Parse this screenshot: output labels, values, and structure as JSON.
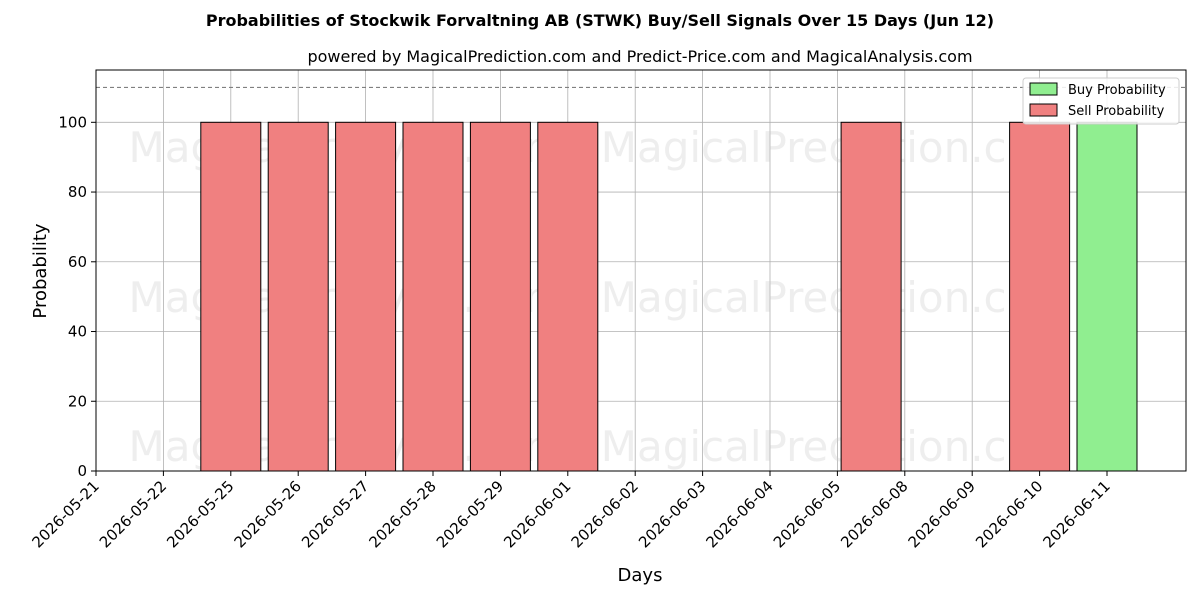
{
  "chart_data": {
    "type": "bar",
    "title": "Probabilities of Stockwik Forvaltning AB (STWK) Buy/Sell Signals Over 15 Days (Jun 12)",
    "subtitle": "powered by MagicalPrediction.com and Predict-Price.com and MagicalAnalysis.com",
    "xlabel": "Days",
    "ylabel": "Probability",
    "ylim": [
      0,
      115
    ],
    "yticks": [
      0,
      20,
      40,
      60,
      80,
      100
    ],
    "reference_line": 110,
    "grid": true,
    "legend_position": "top-right",
    "categories": [
      "2026-05-21",
      "2026-05-22",
      "2026-05-25",
      "2026-05-26",
      "2026-05-27",
      "2026-05-28",
      "2026-05-29",
      "2026-06-01",
      "2026-06-02",
      "2026-06-03",
      "2026-06-04",
      "2026-06-05",
      "2026-06-08",
      "2026-06-09",
      "2026-06-10",
      "2026-06-11"
    ],
    "series": [
      {
        "name": "Buy Probability",
        "color": "#90ee90",
        "bars": [
          {
            "category_index": 14.5,
            "value": 100
          }
        ]
      },
      {
        "name": "Sell Probability",
        "color": "#f08080",
        "bars": [
          {
            "category_index": 2.0,
            "value": 100
          },
          {
            "category_index": 3.0,
            "value": 100
          },
          {
            "category_index": 4.0,
            "value": 100
          },
          {
            "category_index": 5.0,
            "value": 100
          },
          {
            "category_index": 6.0,
            "value": 100
          },
          {
            "category_index": 7.0,
            "value": 100
          },
          {
            "category_index": 11.5,
            "value": 100
          },
          {
            "category_index": 14.5,
            "value": 100
          }
        ]
      }
    ],
    "watermarks": [
      "MagicalAnalysis.com",
      "MagicalPrediction.com"
    ]
  }
}
